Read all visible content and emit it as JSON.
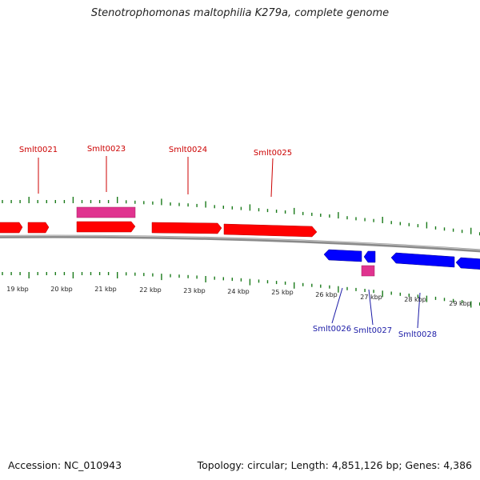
{
  "title": "Stenotrophomonas maltophilia K279a, complete genome",
  "footer": {
    "accession": "Accession: NC_010943",
    "summary": "Topology: circular; Length: 4,851,126 bp; Genes: 4,386"
  },
  "colors": {
    "forward_gene": "#ff0000",
    "reverse_gene": "#0000ff",
    "rna_gene": "#e0338f",
    "forward_label": "#cc0000",
    "reverse_label": "#1a1aa6",
    "tick": "#1a7a1a",
    "backbone": "#8a8a8a"
  },
  "scale_labels": [
    "19 kbp",
    "20 kbp",
    "21 kbp",
    "22 kbp",
    "23 kbp",
    "24 kbp",
    "25 kbp",
    "26 kbp",
    "27 kbp",
    "28 kbp",
    "29 kbp"
  ],
  "forward_labels": [
    "Smlt0021",
    "Smlt0023",
    "Smlt0024",
    "Smlt0025"
  ],
  "reverse_labels": [
    "Smlt0026",
    "Smlt0027",
    "Smlt0028"
  ]
}
